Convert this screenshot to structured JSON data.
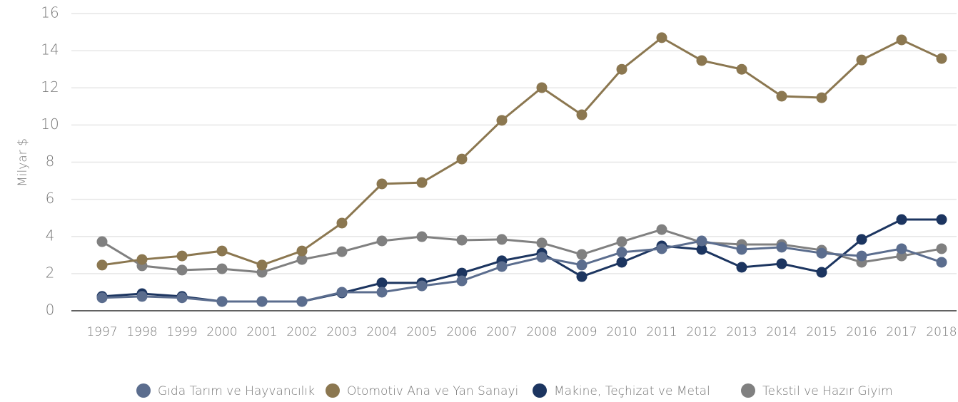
{
  "chart_data": {
    "type": "line",
    "y_label": "Milyar $",
    "categories": [
      "1997",
      "1998",
      "1999",
      "2000",
      "2001",
      "2002",
      "2003",
      "2004",
      "2005",
      "2006",
      "2007",
      "2008",
      "2009",
      "2010",
      "2011",
      "2012",
      "2013",
      "2014",
      "2015",
      "2016",
      "2017",
      "2018"
    ],
    "series": [
      {
        "name": "Gıda Tarım ve Hayvancılık",
        "color": "#5b6d8e",
        "values": [
          0.7,
          0.77,
          0.7,
          0.5,
          0.5,
          0.5,
          1.0,
          1.0,
          1.34,
          1.61,
          2.38,
          2.88,
          2.46,
          3.15,
          3.34,
          3.76,
          3.3,
          3.42,
          3.1,
          2.95,
          3.34,
          2.61
        ]
      },
      {
        "name": "Otomotiv Ana ve Yan Sanayi",
        "color": "#8b7750",
        "values": [
          2.46,
          2.76,
          2.95,
          3.22,
          2.46,
          3.22,
          4.72,
          6.83,
          6.9,
          8.17,
          10.25,
          12.01,
          10.55,
          13.0,
          14.7,
          13.47,
          13.0,
          11.55,
          11.47,
          13.5,
          14.58,
          13.58
        ]
      },
      {
        "name": "Makine, Teçhizat ve Metal",
        "color": "#1c3560",
        "values": [
          0.77,
          0.92,
          0.77,
          0.5,
          0.5,
          0.5,
          0.96,
          1.5,
          1.5,
          2.03,
          2.69,
          3.1,
          1.84,
          2.61,
          3.49,
          3.3,
          2.34,
          2.53,
          2.07,
          3.84,
          4.91,
          4.91
        ]
      },
      {
        "name": "Tekstil ve Hazır Giyim",
        "color": "#808080",
        "values": [
          3.72,
          2.42,
          2.19,
          2.26,
          2.07,
          2.76,
          3.18,
          3.76,
          3.99,
          3.8,
          3.84,
          3.65,
          3.03,
          3.72,
          4.37,
          3.68,
          3.57,
          3.57,
          3.26,
          2.61,
          2.95,
          3.34
        ]
      }
    ],
    "ylim": [
      0,
      16
    ],
    "yticks": [
      0,
      2,
      4,
      6,
      8,
      10,
      12,
      14,
      16
    ],
    "grid": true,
    "legend": "bottom"
  }
}
